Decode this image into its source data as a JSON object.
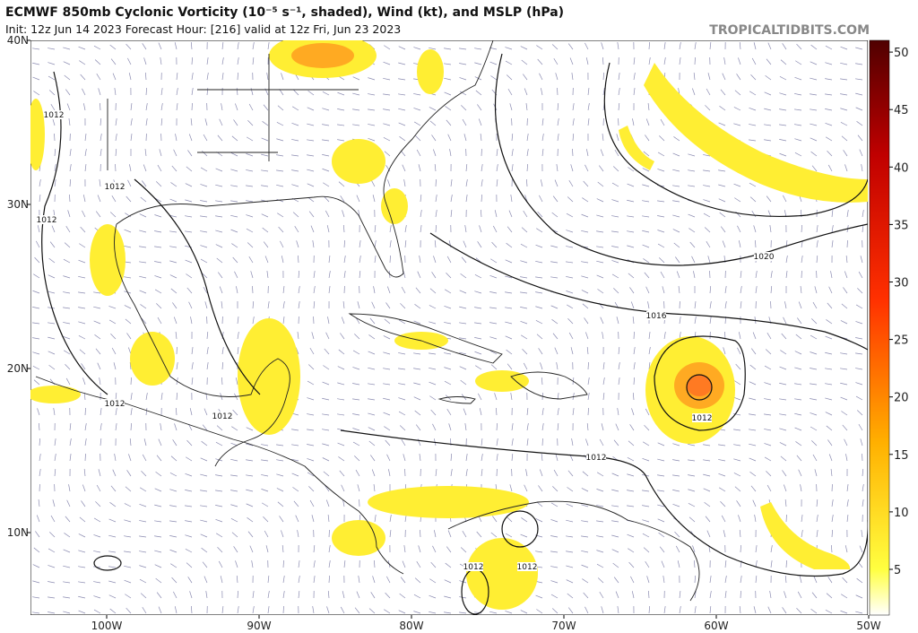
{
  "header": {
    "title": "ECMWF 850mb Cyclonic Vorticity (10⁻⁵ s⁻¹, shaded), Wind (kt), and MSLP (hPa)",
    "subtitle": "Init: 12z Jun 14 2023   Forecast Hour: [216]   valid at 12z Fri, Jun 23 2023",
    "watermark": "TROPICALTIDBITS.COM"
  },
  "map": {
    "lat_labels": [
      "40N",
      "30N",
      "20N",
      "10N"
    ],
    "lon_labels": [
      "100W",
      "90W",
      "80W",
      "70W",
      "60W",
      "50W"
    ],
    "isobar_labels": [
      "1012",
      "1012",
      "1012",
      "1012",
      "1012",
      "1012",
      "1012",
      "1012",
      "1012",
      "1016",
      "1020"
    ]
  },
  "colorbar": {
    "ticks": [
      "5",
      "10",
      "15",
      "20",
      "25",
      "30",
      "35",
      "40",
      "45",
      "50"
    ]
  }
}
